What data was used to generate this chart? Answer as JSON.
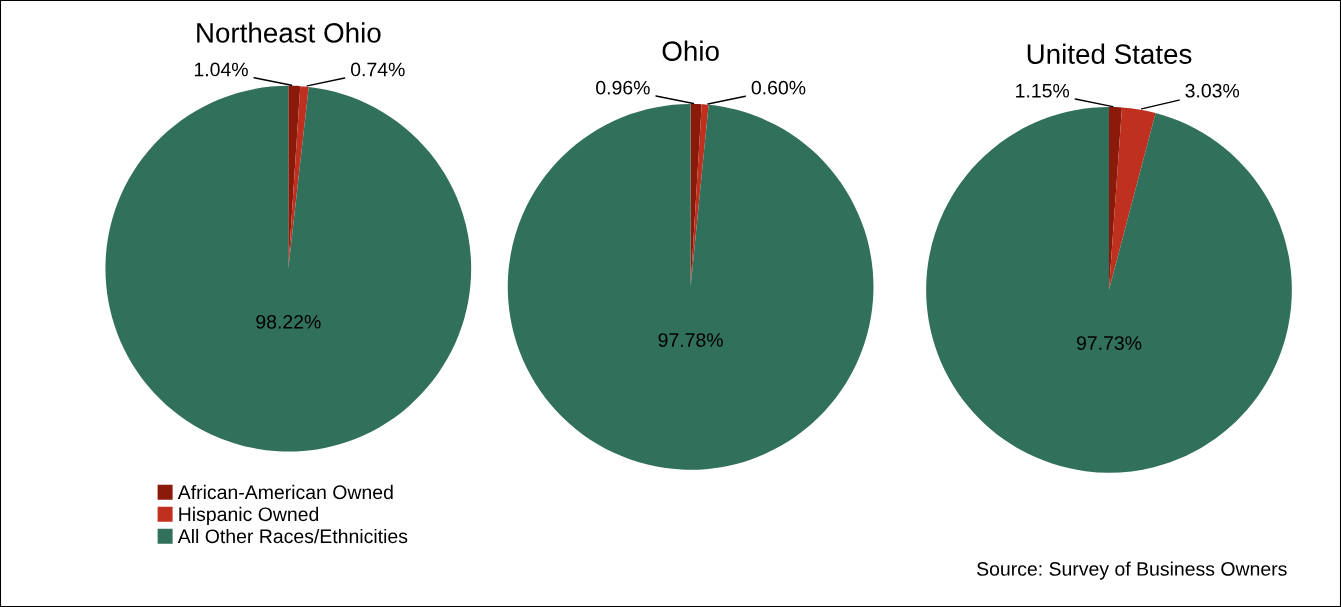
{
  "chart_data": [
    {
      "type": "pie",
      "title": "Northeast Ohio",
      "categories": [
        "African-American Owned",
        "Hispanic Owned",
        "All Other Races/Ethnicities"
      ],
      "values": [
        1.04,
        0.74,
        98.22
      ],
      "value_labels": [
        "1.04%",
        "0.74%",
        "98.22%"
      ],
      "colors": [
        "#8b1a0a",
        "#c0301e",
        "#31705a"
      ],
      "legend": "bottom left"
    },
    {
      "type": "pie",
      "title": "Ohio",
      "categories": [
        null,
        null,
        null
      ],
      "values": [
        0.96,
        0.6,
        97.78
      ],
      "value_labels": [
        "0.96%",
        "0.60%",
        "97.78%"
      ],
      "colors": [
        "#8b1a0a",
        "#c0301e",
        "#31705a"
      ]
    },
    {
      "type": "pie",
      "title": "United States",
      "categories": [
        null,
        null,
        null
      ],
      "values": [
        1.15,
        3.03,
        97.73
      ],
      "value_labels": [
        "1.15%",
        "3.03%",
        "97.73%"
      ],
      "colors": [
        "#8b1a0a",
        "#c0301e",
        "#31705a"
      ],
      "annotations": [
        "Source: Survey of Business Owners"
      ]
    }
  ]
}
